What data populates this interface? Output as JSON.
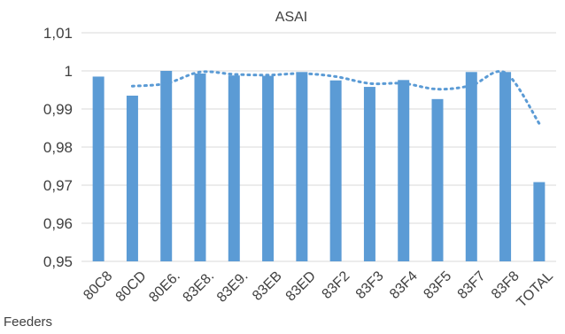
{
  "chart_data": {
    "type": "bar",
    "title": "ASAI",
    "xlabel": "Feeders",
    "ylabel": "",
    "ylim": [
      0.95,
      1.01
    ],
    "yticks": [
      "0,95",
      "0,96",
      "0,97",
      "0,98",
      "0,99",
      "1",
      "1,01"
    ],
    "grid": true,
    "categories": [
      "80C8",
      "80CD",
      "80E6.",
      "83E8.",
      "83E9.",
      "83EB",
      "83ED",
      "83F2",
      "83F3",
      "83F4",
      "83F5",
      "83F7",
      "83F8",
      "TOTAL"
    ],
    "series": [
      {
        "values": [
          0.9985,
          0.9935,
          1.0,
          0.9993,
          0.9988,
          0.9987,
          0.9997,
          0.9975,
          0.9958,
          0.9976,
          0.9926,
          0.9997,
          0.9997,
          0.9708
        ],
        "color": "#5b9bd5"
      }
    ],
    "trendline": {
      "style": "dotted",
      "values": [
        0.996,
        0.9967,
        0.9997,
        0.9991,
        0.9989,
        0.9993,
        0.9985,
        0.9967,
        0.9967,
        0.9952,
        0.9962,
        0.9995,
        0.9862
      ]
    }
  }
}
